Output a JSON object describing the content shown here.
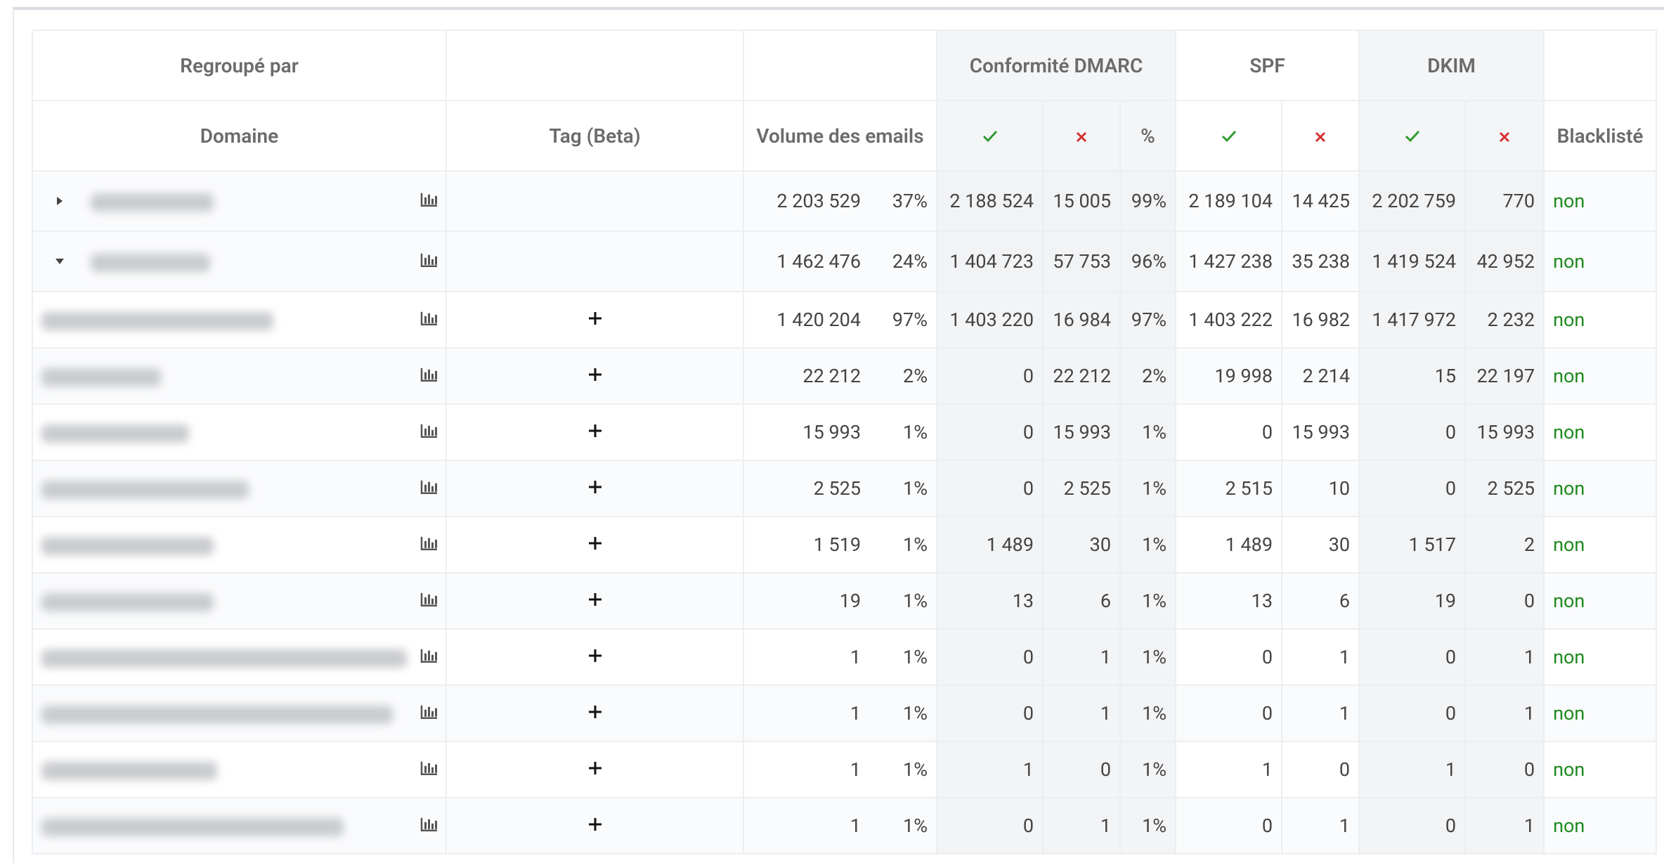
{
  "table": {
    "group_header": {
      "grouped_by": "Regroupé par",
      "dmarc": "Conformité DMARC",
      "spf": "SPF",
      "dkim": "DKIM"
    },
    "headers": {
      "domain": "Domaine",
      "tag": "Tag (Beta)",
      "volume": "Volume des emails",
      "dmarc_pct": "%",
      "blacklisted": "Blacklisté"
    },
    "rows": [
      {
        "level": "group",
        "expanded": false,
        "cells": [
          "2 203 529",
          "37%",
          "2 188 524",
          "15 005",
          "99%",
          "2 189 104",
          "14 425",
          "2 202 759",
          "770",
          "non"
        ]
      },
      {
        "level": "group",
        "expanded": true,
        "cells": [
          "1 462 476",
          "24%",
          "1 404 723",
          "57 753",
          "96%",
          "1 427 238",
          "35 238",
          "1 419 524",
          "42 952",
          "non"
        ]
      },
      {
        "level": "child",
        "cells": [
          "1 420 204",
          "97%",
          "1 403 220",
          "16 984",
          "97%",
          "1 403 222",
          "16 982",
          "1 417 972",
          "2 232",
          "non"
        ]
      },
      {
        "level": "child",
        "cells": [
          "22 212",
          "2%",
          "0",
          "22 212",
          "2%",
          "19 998",
          "2 214",
          "15",
          "22 197",
          "non"
        ]
      },
      {
        "level": "child",
        "cells": [
          "15 993",
          "1%",
          "0",
          "15 993",
          "1%",
          "0",
          "15 993",
          "0",
          "15 993",
          "non"
        ]
      },
      {
        "level": "child",
        "cells": [
          "2 525",
          "1%",
          "0",
          "2 525",
          "1%",
          "2 515",
          "10",
          "0",
          "2 525",
          "non"
        ]
      },
      {
        "level": "child",
        "cells": [
          "1 519",
          "1%",
          "1 489",
          "30",
          "1%",
          "1 489",
          "30",
          "1 517",
          "2",
          "non"
        ]
      },
      {
        "level": "child",
        "cells": [
          "19",
          "1%",
          "13",
          "6",
          "1%",
          "13",
          "6",
          "19",
          "0",
          "non"
        ]
      },
      {
        "level": "child",
        "cells": [
          "1",
          "1%",
          "0",
          "1",
          "1%",
          "0",
          "1",
          "0",
          "1",
          "non"
        ]
      },
      {
        "level": "child",
        "cells": [
          "1",
          "1%",
          "0",
          "1",
          "1%",
          "0",
          "1",
          "0",
          "1",
          "non"
        ]
      },
      {
        "level": "child",
        "cells": [
          "1",
          "1%",
          "1",
          "0",
          "1%",
          "1",
          "0",
          "1",
          "0",
          "non"
        ]
      },
      {
        "level": "child",
        "cells": [
          "1",
          "1%",
          "0",
          "1",
          "1%",
          "0",
          "1",
          "0",
          "1",
          "non"
        ]
      }
    ]
  }
}
